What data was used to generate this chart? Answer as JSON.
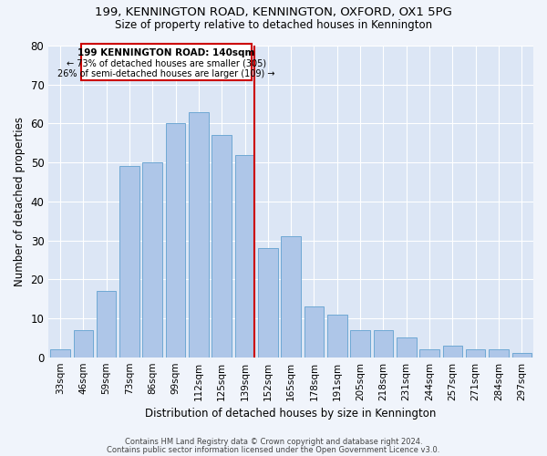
{
  "title1": "199, KENNINGTON ROAD, KENNINGTON, OXFORD, OX1 5PG",
  "title2": "Size of property relative to detached houses in Kennington",
  "xlabel": "Distribution of detached houses by size in Kennington",
  "ylabel": "Number of detached properties",
  "categories": [
    "33sqm",
    "46sqm",
    "59sqm",
    "73sqm",
    "86sqm",
    "99sqm",
    "112sqm",
    "125sqm",
    "139sqm",
    "152sqm",
    "165sqm",
    "178sqm",
    "191sqm",
    "205sqm",
    "218sqm",
    "231sqm",
    "244sqm",
    "257sqm",
    "271sqm",
    "284sqm",
    "297sqm"
  ],
  "values": [
    2,
    7,
    17,
    49,
    50,
    60,
    63,
    57,
    52,
    28,
    31,
    13,
    11,
    7,
    7,
    5,
    2,
    3,
    2,
    2,
    1
  ],
  "bar_color": "#aec6e8",
  "bar_edge_color": "#6fa8d4",
  "background_color": "#dce6f5",
  "vline_color": "#cc0000",
  "annotation_line1": "199 KENNINGTON ROAD: 140sqm",
  "annotation_line2": "← 73% of detached houses are smaller (305)",
  "annotation_line3": "26% of semi-detached houses are larger (109) →",
  "annotation_box_color": "#cc0000",
  "ylim": [
    0,
    80
  ],
  "yticks": [
    0,
    10,
    20,
    30,
    40,
    50,
    60,
    70,
    80
  ],
  "footer1": "Contains HM Land Registry data © Crown copyright and database right 2024.",
  "footer2": "Contains public sector information licensed under the Open Government Licence v3.0.",
  "fig_bg": "#f0f4fb"
}
